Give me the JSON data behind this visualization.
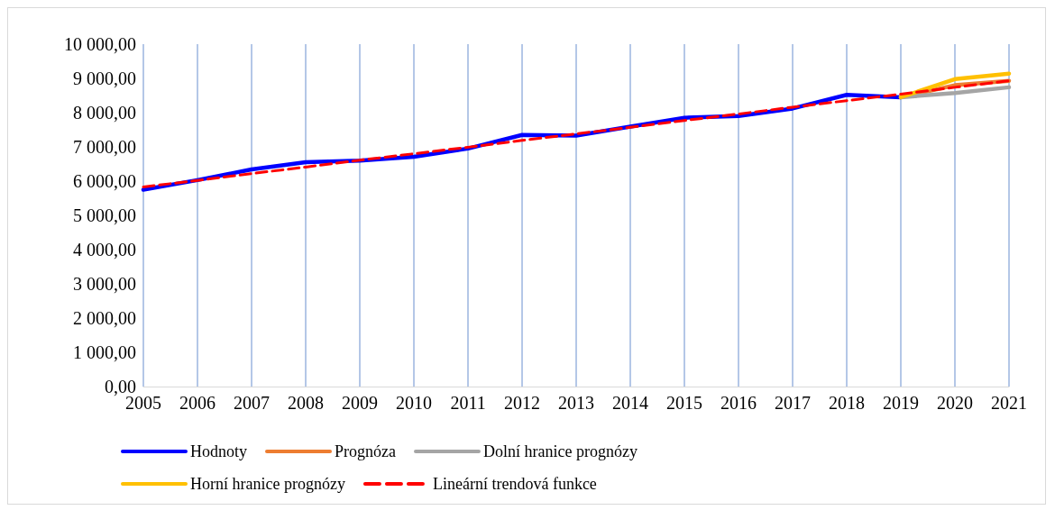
{
  "chart_data": {
    "type": "line",
    "categories": [
      "2005",
      "2006",
      "2007",
      "2008",
      "2009",
      "2010",
      "2011",
      "2012",
      "2013",
      "2014",
      "2015",
      "2016",
      "2017",
      "2018",
      "2019",
      "2020",
      "2021"
    ],
    "ylim": [
      0,
      10000
    ],
    "yticks": [
      {
        "value": 0,
        "label": "0,00"
      },
      {
        "value": 1000,
        "label": "1 000,00"
      },
      {
        "value": 2000,
        "label": "2 000,00"
      },
      {
        "value": 3000,
        "label": "3 000,00"
      },
      {
        "value": 4000,
        "label": "4 000,00"
      },
      {
        "value": 5000,
        "label": "5 000,00"
      },
      {
        "value": 6000,
        "label": "6 000,00"
      },
      {
        "value": 7000,
        "label": "7 000,00"
      },
      {
        "value": 8000,
        "label": "8 000,00"
      },
      {
        "value": 9000,
        "label": "9 000,00"
      },
      {
        "value": 10000,
        "label": "10 000,00"
      }
    ],
    "grid": "x",
    "legend": "bottom",
    "marker": "none",
    "series": [
      {
        "name": "Hodnoty",
        "color": "#0000ff",
        "values": [
          5750,
          6030,
          6340,
          6550,
          6600,
          6710,
          6950,
          7350,
          7330,
          7590,
          7850,
          7900,
          8120,
          8520,
          8450,
          null,
          null
        ]
      },
      {
        "name": "Prognóza",
        "color": "#ed7d31",
        "values": [
          null,
          null,
          null,
          null,
          null,
          null,
          null,
          null,
          null,
          null,
          null,
          null,
          null,
          null,
          8450,
          8800,
          8930
        ]
      },
      {
        "name": "Dolní hranice prognózy",
        "color": "#a5a5a5",
        "values": [
          null,
          null,
          null,
          null,
          null,
          null,
          null,
          null,
          null,
          null,
          null,
          null,
          null,
          null,
          8450,
          8570,
          8740
        ]
      },
      {
        "name": "Horní hranice prognózy",
        "color": "#ffc000",
        "values": [
          null,
          null,
          null,
          null,
          null,
          null,
          null,
          null,
          null,
          null,
          null,
          null,
          null,
          null,
          8450,
          8980,
          9140
        ]
      },
      {
        "name": "Lineární trendová funkce",
        "color": "#ff0000",
        "line_style": "dashed",
        "values": [
          5830,
          6020,
          6220,
          6410,
          6610,
          6800,
          6990,
          7190,
          7380,
          7570,
          7770,
          7960,
          8160,
          8350,
          8540,
          8740,
          8930
        ]
      }
    ]
  }
}
